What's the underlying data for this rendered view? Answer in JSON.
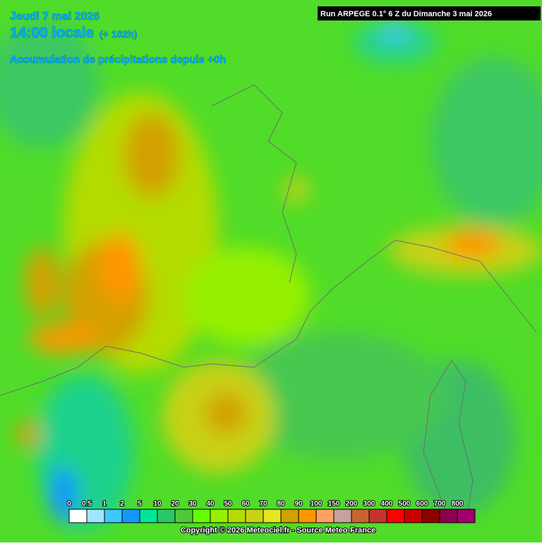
{
  "header": {
    "date": "Jeudi 7 mai 2026",
    "time": "14:00 locale",
    "lead": "(+ 102h)",
    "subtitle": "Accumulation de précipitations depuis +0h"
  },
  "run": "Run ARPEGE 0.1° 6 Z du Dimanche 3 mai 2026",
  "legend": {
    "levels": [
      0,
      0.5,
      1,
      2,
      5,
      10,
      20,
      30,
      40,
      50,
      60,
      70,
      80,
      90,
      100,
      150,
      200,
      300,
      400,
      500,
      600,
      700,
      800
    ],
    "colors": [
      "#ffffff",
      "#a0e6ff",
      "#3cc8ff",
      "#1496ff",
      "#00e696",
      "#28c864",
      "#50c83c",
      "#64ff00",
      "#96f000",
      "#b4dc00",
      "#c8d214",
      "#e6e61e",
      "#d2a000",
      "#ff9600",
      "#ffa064",
      "#c8a0a0",
      "#c86432",
      "#c83232",
      "#ff0000",
      "#c80000",
      "#8c0000",
      "#8c0050",
      "#a0006e"
    ]
  },
  "copyright": "Copyright © 2026 Meteociel.fr - Source Meteo-France"
}
